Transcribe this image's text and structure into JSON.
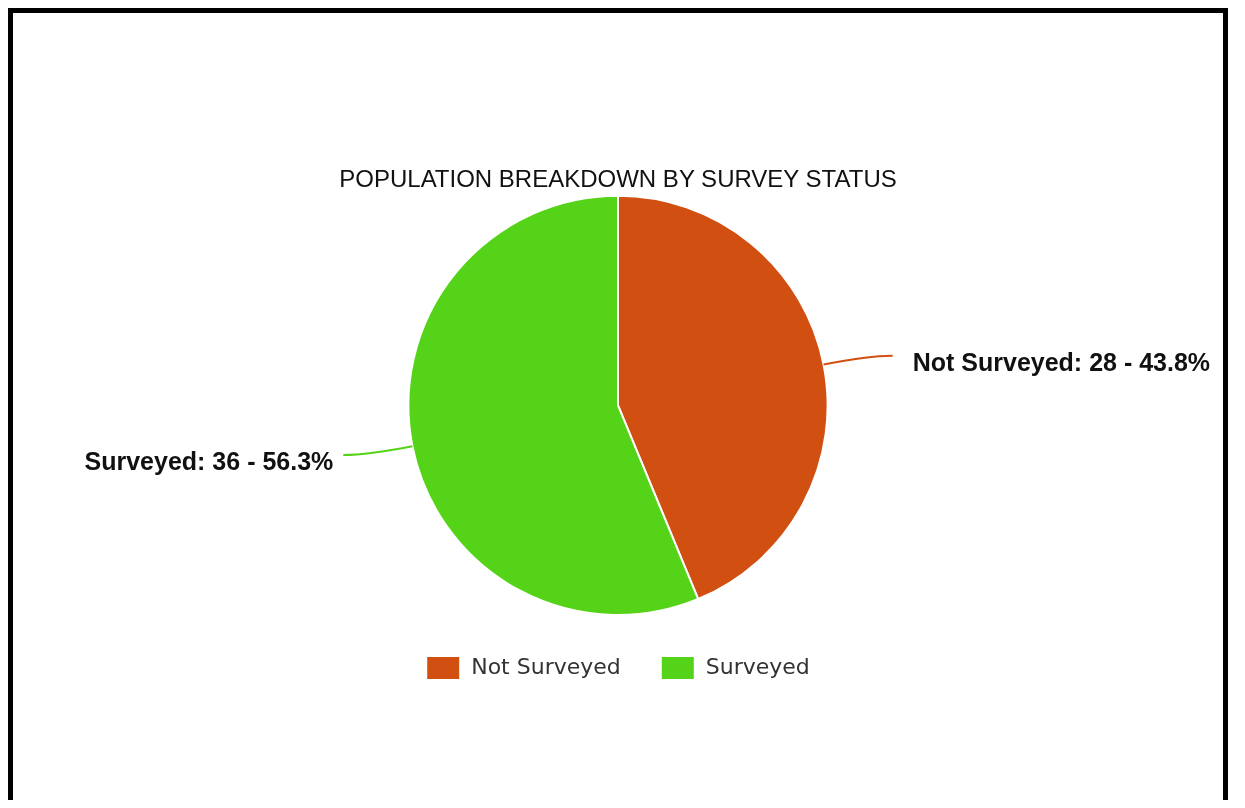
{
  "chart_data": {
    "type": "pie",
    "title": "POPULATION BREAKDOWN BY SURVEY STATUS",
    "categories": [
      "Not Surveyed",
      "Surveyed"
    ],
    "values": [
      28,
      36
    ],
    "colors": [
      "#d24f12",
      "#55d318"
    ],
    "value_labels": [
      "Not Surveyed: 28 - 43.8%",
      "Surveyed: 36 - 56.3%"
    ],
    "legend": "bottom"
  }
}
